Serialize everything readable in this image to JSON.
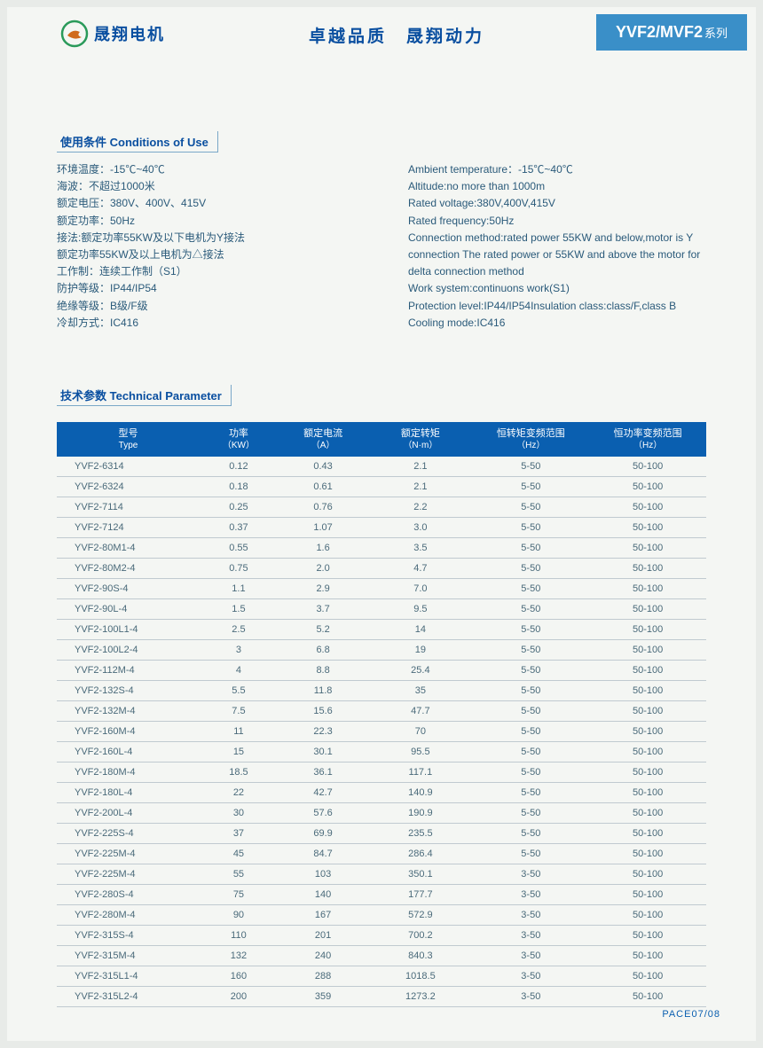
{
  "header": {
    "logo_text": "晟翔电机",
    "slogan": "卓越品质　晟翔动力",
    "series": "YVF2/MVF2",
    "series_suffix": "系列"
  },
  "conditions": {
    "title": "使用条件 Conditions of Use",
    "left": [
      "环境温度：-15℃~40℃",
      "海波：不超过1000米",
      "额定电压：380V、400V、415V",
      "额定功率：50Hz",
      "接法:额定功率55KW及以下电机为Y接法",
      "额定功率55KW及以上电机为△接法",
      "工作制：连续工作制（S1）",
      "防护等级：IP44/IP54",
      "绝缘等级：B级/F级",
      "冷却方式：IC416"
    ],
    "right": [
      "Ambient temperature：-15℃~40℃",
      "Altitude:no more than 1000m",
      "Rated voltage:380V,400V,415V",
      "Rated frequency:50Hz",
      "Connection method:rated power 55KW and below,motor is Y",
      "connection The rated power or 55KW and above the motor for",
      " delta connection method",
      "Work system:continuons work(S1)",
      "Protection level:IP44/IP54Insulation class:class/F,class B",
      "Cooling mode:IC416"
    ]
  },
  "tech": {
    "title": "技术参数 Technical Parameter",
    "columns": [
      {
        "main": "型号",
        "sub": "Type"
      },
      {
        "main": "功率",
        "sub": "（KW）"
      },
      {
        "main": "额定电流",
        "sub": "（A）"
      },
      {
        "main": "额定转矩",
        "sub": "（N·m）"
      },
      {
        "main": "恒转矩变频范围",
        "sub": "（Hz）"
      },
      {
        "main": "恒功率变频范围",
        "sub": "（Hz）"
      }
    ],
    "rows": [
      [
        "YVF2-6314",
        "0.12",
        "0.43",
        "2.1",
        "5-50",
        "50-100"
      ],
      [
        "YVF2-6324",
        "0.18",
        "0.61",
        "2.1",
        "5-50",
        "50-100"
      ],
      [
        "YVF2-7114",
        "0.25",
        "0.76",
        "2.2",
        "5-50",
        "50-100"
      ],
      [
        "YVF2-7124",
        "0.37",
        "1.07",
        "3.0",
        "5-50",
        "50-100"
      ],
      [
        "YVF2-80M1-4",
        "0.55",
        "1.6",
        "3.5",
        "5-50",
        "50-100"
      ],
      [
        "YVF2-80M2-4",
        "0.75",
        "2.0",
        "4.7",
        "5-50",
        "50-100"
      ],
      [
        "YVF2-90S-4",
        "1.1",
        "2.9",
        "7.0",
        "5-50",
        "50-100"
      ],
      [
        "YVF2-90L-4",
        "1.5",
        "3.7",
        "9.5",
        "5-50",
        "50-100"
      ],
      [
        "YVF2-100L1-4",
        "2.5",
        "5.2",
        "14",
        "5-50",
        "50-100"
      ],
      [
        "YVF2-100L2-4",
        "3",
        "6.8",
        "19",
        "5-50",
        "50-100"
      ],
      [
        "YVF2-112M-4",
        "4",
        "8.8",
        "25.4",
        "5-50",
        "50-100"
      ],
      [
        "YVF2-132S-4",
        "5.5",
        "11.8",
        "35",
        "5-50",
        "50-100"
      ],
      [
        "YVF2-132M-4",
        "7.5",
        "15.6",
        "47.7",
        "5-50",
        "50-100"
      ],
      [
        "YVF2-160M-4",
        "11",
        "22.3",
        "70",
        "5-50",
        "50-100"
      ],
      [
        "YVF2-160L-4",
        "15",
        "30.1",
        "95.5",
        "5-50",
        "50-100"
      ],
      [
        "YVF2-180M-4",
        "18.5",
        "36.1",
        "117.1",
        "5-50",
        "50-100"
      ],
      [
        "YVF2-180L-4",
        "22",
        "42.7",
        "140.9",
        "5-50",
        "50-100"
      ],
      [
        "YVF2-200L-4",
        "30",
        "57.6",
        "190.9",
        "5-50",
        "50-100"
      ],
      [
        "YVF2-225S-4",
        "37",
        "69.9",
        "235.5",
        "5-50",
        "50-100"
      ],
      [
        "YVF2-225M-4",
        "45",
        "84.7",
        "286.4",
        "5-50",
        "50-100"
      ],
      [
        "YVF2-225M-4",
        "55",
        "103",
        "350.1",
        "3-50",
        "50-100"
      ],
      [
        "YVF2-280S-4",
        "75",
        "140",
        "177.7",
        "3-50",
        "50-100"
      ],
      [
        "YVF2-280M-4",
        "90",
        "167",
        "572.9",
        "3-50",
        "50-100"
      ],
      [
        "YVF2-315S-4",
        "110",
        "201",
        "700.2",
        "3-50",
        "50-100"
      ],
      [
        "YVF2-315M-4",
        "132",
        "240",
        "840.3",
        "3-50",
        "50-100"
      ],
      [
        "YVF2-315L1-4",
        "160",
        "288",
        "1018.5",
        "3-50",
        "50-100"
      ],
      [
        "YVF2-315L2-4",
        "200",
        "359",
        "1273.2",
        "3-50",
        "50-100"
      ]
    ],
    "col_widths": [
      "22%",
      "12%",
      "14%",
      "16%",
      "18%",
      "18%"
    ]
  },
  "footer": "PACE07/08",
  "colors": {
    "header_blue": "#0a5fb0",
    "badge_blue": "#3a8fc8",
    "text_blue": "#0a4fa0",
    "body_text": "#2a5a7a",
    "row_border": "#c0cad0",
    "page_bg": "#f4f6f3"
  }
}
